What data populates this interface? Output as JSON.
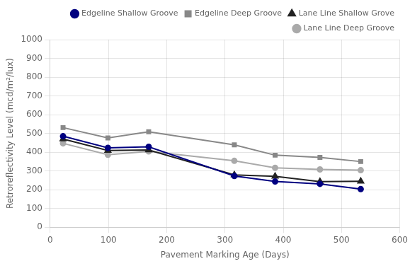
{
  "chart_data": {
    "type": "line",
    "xlabel": "Pavement Marking Age (Days)",
    "ylabel": "Retroreflectivity Level (mcd/m²/lux)",
    "x": [
      22,
      99,
      169,
      316,
      386,
      463,
      533
    ],
    "series": [
      {
        "name": "Edgeline Shallow Groove",
        "color": "#000080",
        "marker": "circle",
        "line_style": "solid",
        "values": [
          485,
          423,
          429,
          273,
          244,
          231,
          203
        ]
      },
      {
        "name": "Edgeline Deep Groove",
        "color": "#888888",
        "marker": "square",
        "line_style": "solid",
        "values": [
          531,
          476,
          509,
          439,
          384,
          372,
          350
        ]
      },
      {
        "name": "Lane Line Shallow Grove",
        "color": "#222222",
        "marker": "triangle",
        "line_style": "solid",
        "values": [
          470,
          409,
          412,
          279,
          271,
          243,
          245
        ]
      },
      {
        "name": "Lane Line Deep Groove",
        "color": "#aaaaaa",
        "marker": "circle",
        "line_style": "solid",
        "values": [
          447,
          386,
          404,
          354,
          317,
          308,
          304
        ]
      }
    ],
    "xlim": [
      0,
      600
    ],
    "ylim": [
      0,
      1000
    ],
    "xticks": [
      0,
      100,
      200,
      300,
      400,
      500,
      600
    ],
    "yticks": [
      0,
      100,
      200,
      300,
      400,
      500,
      600,
      700,
      800,
      900,
      1000
    ],
    "grid": true,
    "legend": "upper right"
  }
}
